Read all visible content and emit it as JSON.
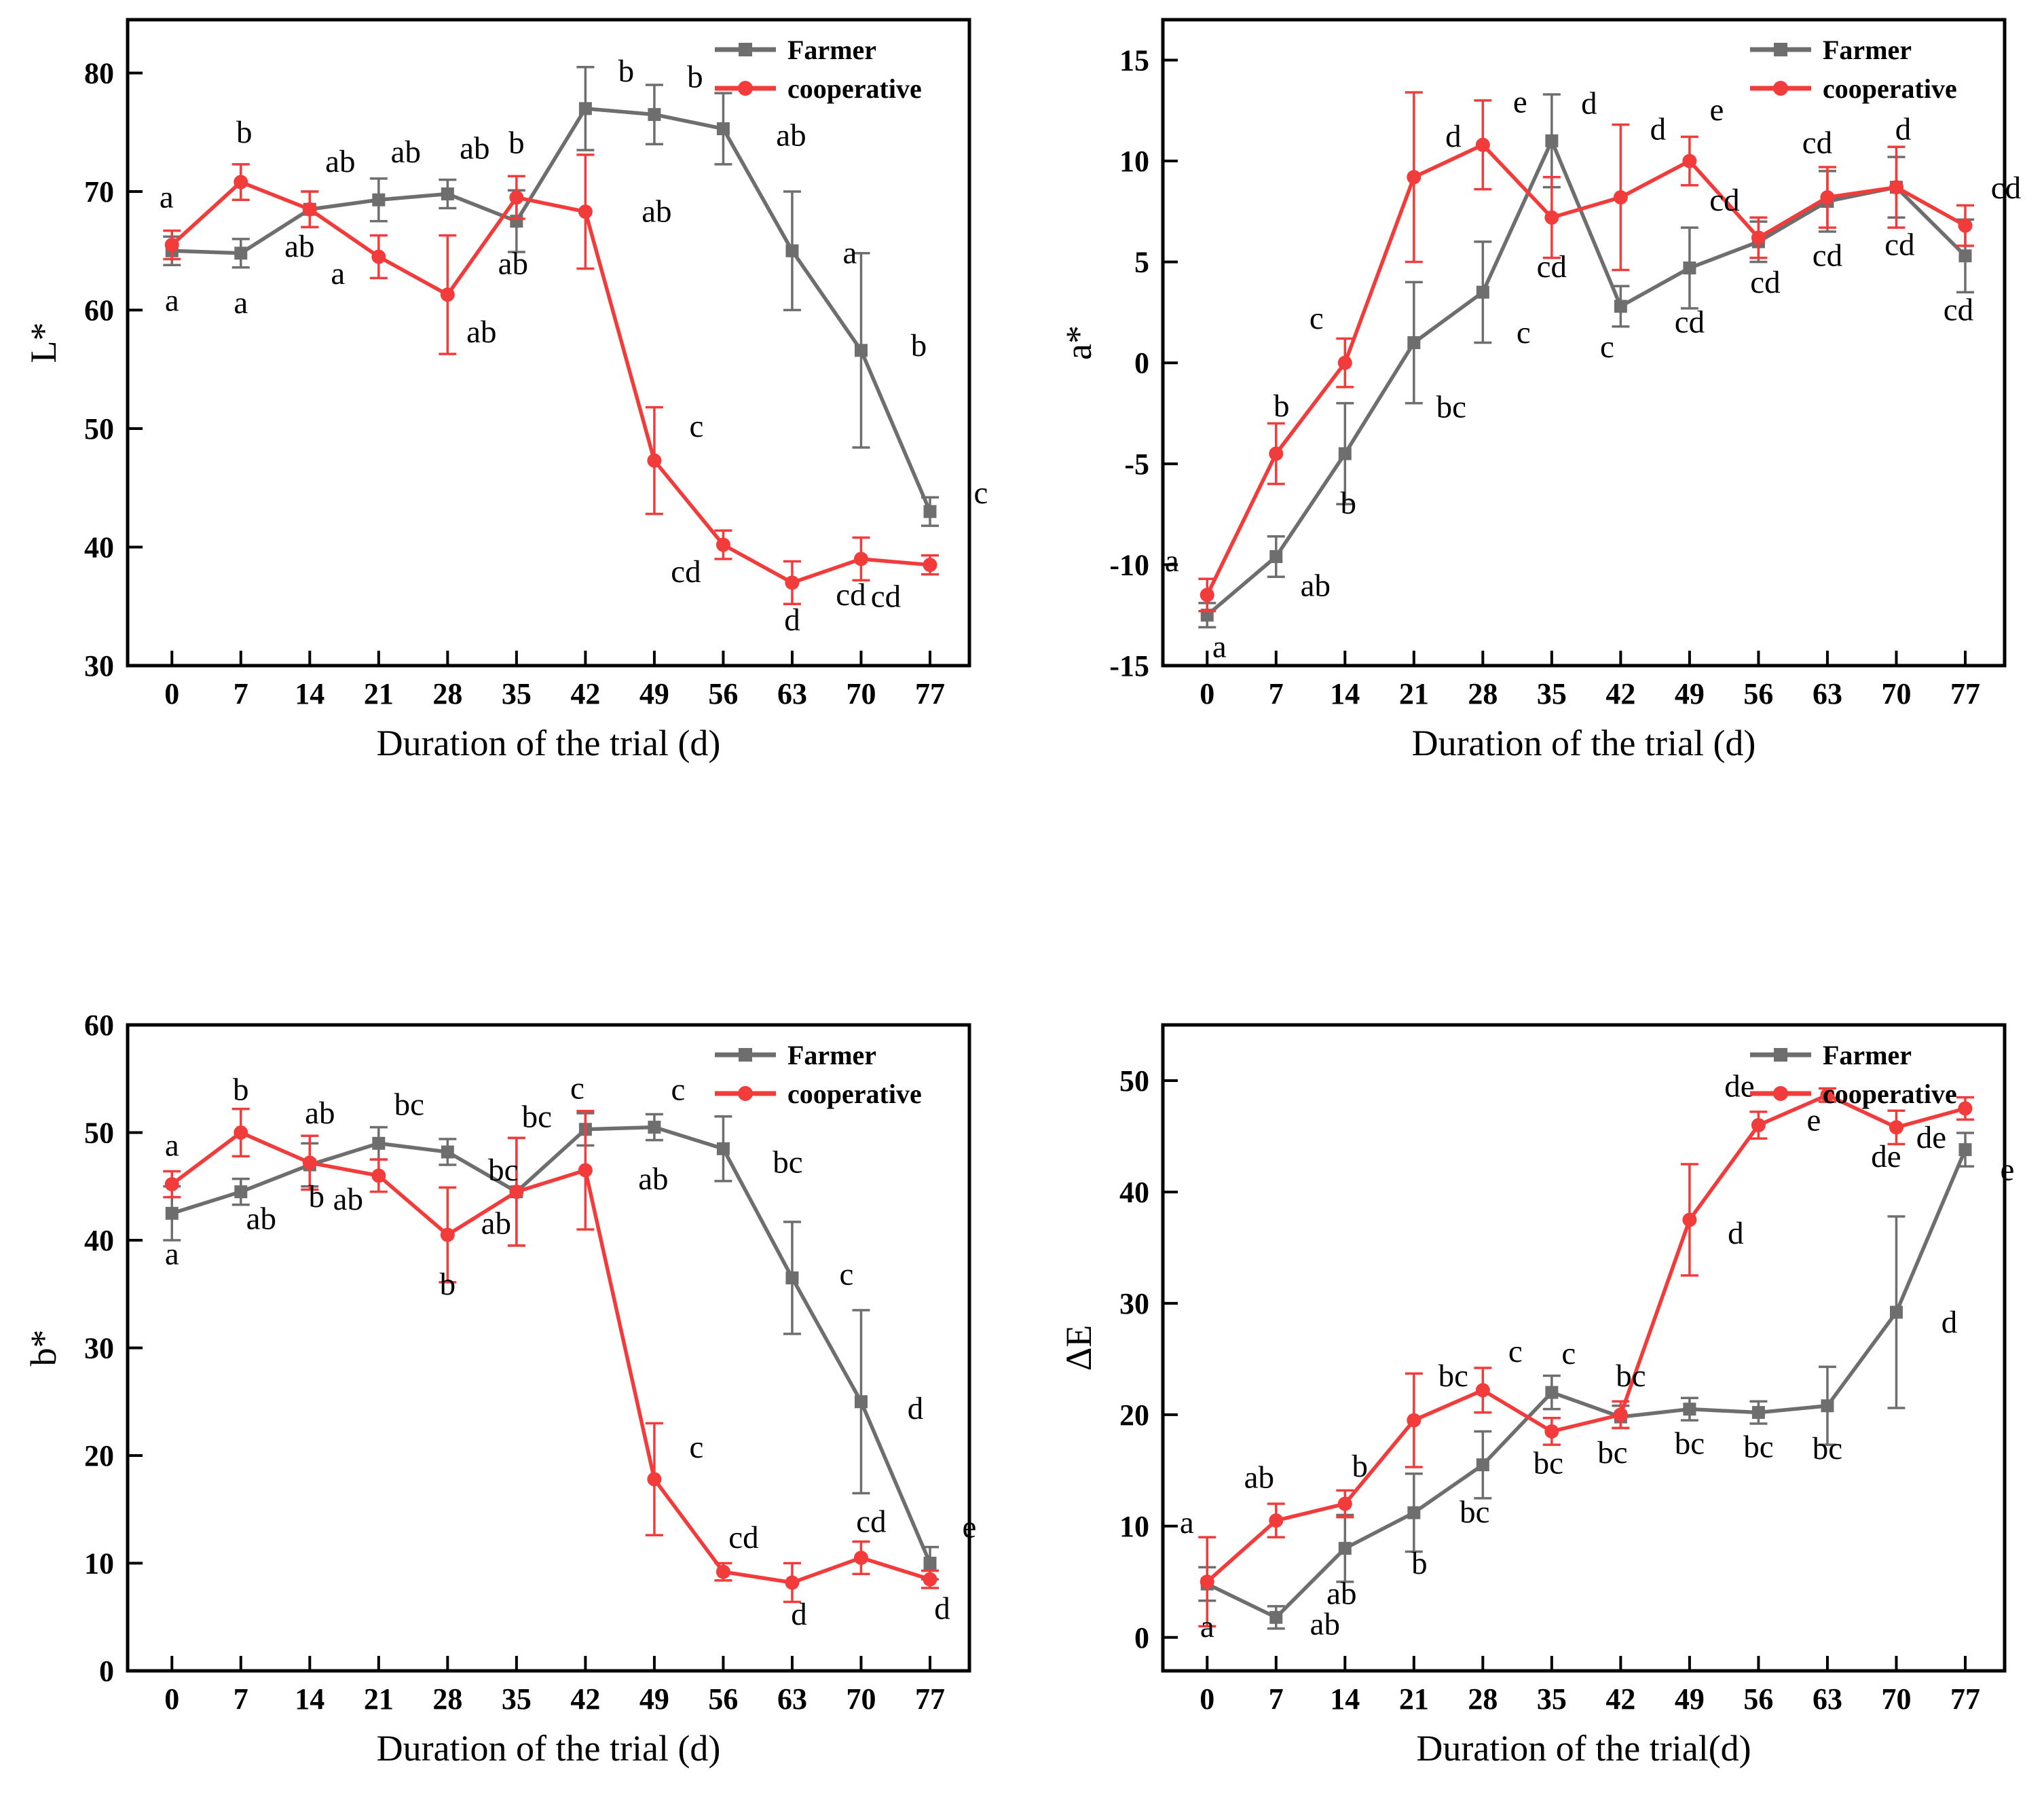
{
  "accent_colors": {
    "farmer": "#6e6e6e",
    "cooperative": "#f23b3b",
    "axis": "#000000"
  },
  "legend": {
    "farmer_label": "Farmer",
    "cooperative_label": "cooperative"
  },
  "chart_data": [
    {
      "type": "line",
      "title": "",
      "ylabel": "L*",
      "xlabel": "Duration of the trial (d)",
      "x": [
        0,
        7,
        14,
        21,
        28,
        35,
        42,
        49,
        56,
        63,
        70,
        77
      ],
      "xlim": [
        -4.5,
        81
      ],
      "ylim": [
        30,
        84.5
      ],
      "yticks": [
        30,
        40,
        50,
        60,
        70,
        80
      ],
      "legend_position": "top-right",
      "grid": false,
      "series": [
        {
          "name": "Farmer",
          "color": "#6e6e6e",
          "marker": "square",
          "label_color": "#000000",
          "values": [
            65.0,
            64.8,
            68.5,
            69.3,
            69.8,
            67.5,
            77.0,
            76.5,
            75.3,
            65.0,
            56.6,
            43.0
          ],
          "errors": [
            1.2,
            1.2,
            1.5,
            1.8,
            1.2,
            2.6,
            3.5,
            2.5,
            3.0,
            5.0,
            8.2,
            1.2
          ],
          "labels": [
            "a",
            "a",
            "ab",
            "ab",
            "ab",
            "ab",
            "b",
            "b",
            "ab",
            "a",
            "b",
            "c"
          ],
          "label_offsets": [
            [
              0,
              88
            ],
            [
              0,
              88
            ],
            [
              45,
              -55
            ],
            [
              40,
              -55
            ],
            [
              40,
              -52
            ],
            [
              -5,
              78
            ],
            [
              60,
              -40
            ],
            [
              60,
              -40
            ],
            [
              100,
              25
            ],
            [
              85,
              18
            ],
            [
              85,
              8
            ],
            [
              75,
              -12
            ]
          ]
        },
        {
          "name": "cooperative",
          "color": "#f23b3b",
          "marker": "circle",
          "label_color": "#f23b3b",
          "values": [
            65.5,
            70.8,
            68.5,
            64.5,
            61.3,
            69.5,
            68.3,
            47.3,
            40.2,
            37.0,
            39.0,
            38.5
          ],
          "errors": [
            1.2,
            1.5,
            1.5,
            1.8,
            5.0,
            1.8,
            4.8,
            4.5,
            1.2,
            1.8,
            1.8,
            0.8
          ],
          "labels": [
            "a",
            "b",
            "ab",
            "a",
            "ab",
            "b",
            "ab",
            "c",
            "cd",
            "d",
            "cd",
            "cd"
          ],
          "label_offsets": [
            [
              -8,
              -55
            ],
            [
              5,
              -58
            ],
            [
              -15,
              70
            ],
            [
              -60,
              40
            ],
            [
              50,
              70
            ],
            [
              0,
              -65
            ],
            [
              105,
              15
            ],
            [
              62,
              -35
            ],
            [
              -55,
              55
            ],
            [
              0,
              70
            ],
            [
              -15,
              68
            ],
            [
              -65,
              62
            ]
          ]
        }
      ]
    },
    {
      "type": "line",
      "title": "",
      "ylabel": "a*",
      "xlabel": "Duration of the trial (d)",
      "x": [
        0,
        7,
        14,
        21,
        28,
        35,
        42,
        49,
        56,
        63,
        70,
        77
      ],
      "xlim": [
        -4.5,
        81
      ],
      "ylim": [
        -15,
        17
      ],
      "yticks": [
        -15,
        -10,
        -5,
        0,
        5,
        10,
        15
      ],
      "legend_position": "top-right",
      "grid": false,
      "series": [
        {
          "name": "Farmer",
          "color": "#6e6e6e",
          "marker": "square",
          "label_color": "#000000",
          "values": [
            -12.5,
            -9.6,
            -4.5,
            1.0,
            3.5,
            11.0,
            2.8,
            4.7,
            6.0,
            8.0,
            8.7,
            5.3
          ],
          "errors": [
            0.6,
            1.0,
            2.5,
            3.0,
            2.5,
            2.3,
            1.0,
            2.0,
            1.0,
            1.5,
            1.5,
            1.8
          ],
          "labels": [
            "a",
            "ab",
            "b",
            "bc",
            "c",
            "d",
            "c",
            "cd",
            "cd",
            "cd",
            "cd",
            "cd"
          ],
          "label_offsets": [
            [
              18,
              62
            ],
            [
              58,
              58
            ],
            [
              5,
              88
            ],
            [
              55,
              110
            ],
            [
              60,
              75
            ],
            [
              55,
              -40
            ],
            [
              -20,
              75
            ],
            [
              0,
              95
            ],
            [
              10,
              75
            ],
            [
              0,
              95
            ],
            [
              5,
              100
            ],
            [
              -10,
              95
            ]
          ]
        },
        {
          "name": "cooperative",
          "color": "#f23b3b",
          "marker": "circle",
          "label_color": "#f23b3b",
          "values": [
            -11.5,
            -4.5,
            0.0,
            9.2,
            10.8,
            7.2,
            8.2,
            10.0,
            6.2,
            8.2,
            8.7,
            6.8
          ],
          "errors": [
            0.8,
            1.5,
            1.2,
            4.2,
            2.2,
            2.0,
            3.6,
            1.2,
            1.0,
            1.5,
            2.0,
            1.0
          ],
          "labels": [
            "a",
            "b",
            "c",
            "d",
            "e",
            "cd",
            "d",
            "e",
            "cd",
            "cd",
            "d",
            "cd"
          ],
          "label_offsets": [
            [
              -52,
              -35
            ],
            [
              8,
              -55
            ],
            [
              -42,
              -50
            ],
            [
              58,
              -45
            ],
            [
              55,
              -48
            ],
            [
              0,
              88
            ],
            [
              55,
              -85
            ],
            [
              40,
              -60
            ],
            [
              -50,
              -40
            ],
            [
              -15,
              -65
            ],
            [
              10,
              -70
            ],
            [
              60,
              -40
            ]
          ]
        }
      ]
    },
    {
      "type": "line",
      "title": "",
      "ylabel": "b*",
      "xlabel": "Duration of the trial (d)",
      "x": [
        0,
        7,
        14,
        21,
        28,
        35,
        42,
        49,
        56,
        63,
        70,
        77
      ],
      "xlim": [
        -4.5,
        81
      ],
      "ylim": [
        0,
        60
      ],
      "yticks": [
        0,
        10,
        20,
        30,
        40,
        50,
        60
      ],
      "legend_position": "top-right",
      "grid": false,
      "series": [
        {
          "name": "Farmer",
          "color": "#6e6e6e",
          "marker": "square",
          "label_color": "#000000",
          "values": [
            42.5,
            44.5,
            47.0,
            49.0,
            48.2,
            44.5,
            50.3,
            50.5,
            48.5,
            36.5,
            25.0,
            10.0
          ],
          "errors": [
            2.5,
            1.2,
            2.0,
            1.5,
            1.2,
            5.0,
            1.5,
            1.2,
            3.0,
            5.2,
            8.5,
            1.5
          ],
          "labels": [
            "a",
            "ab",
            "b",
            "bc",
            "bc",
            "bc",
            "c",
            "c",
            "bc",
            "c",
            "d",
            "e"
          ],
          "label_offsets": [
            [
              0,
              75
            ],
            [
              30,
              55
            ],
            [
              10,
              62
            ],
            [
              45,
              -42
            ],
            [
              82,
              42
            ],
            [
              30,
              -95
            ],
            [
              -12,
              -45
            ],
            [
              35,
              -40
            ],
            [
              95,
              35
            ],
            [
              80,
              10
            ],
            [
              80,
              25
            ],
            [
              58,
              -38
            ]
          ]
        },
        {
          "name": "cooperative",
          "color": "#f23b3b",
          "marker": "circle",
          "label_color": "#f23b3b",
          "values": [
            45.2,
            50.0,
            47.2,
            46.0,
            40.5,
            44.5,
            46.5,
            17.8,
            9.2,
            8.2,
            10.5,
            8.5
          ],
          "errors": [
            1.2,
            2.2,
            2.5,
            1.5,
            4.4,
            5.0,
            5.5,
            5.2,
            0.8,
            1.8,
            1.5,
            0.8
          ],
          "labels": [
            "a",
            "b",
            "ab",
            "ab",
            "b",
            "ab",
            "ab",
            "c",
            "cd",
            "d",
            "cd",
            "d"
          ],
          "label_offsets": [
            [
              0,
              -42
            ],
            [
              0,
              -48
            ],
            [
              15,
              -58
            ],
            [
              -45,
              50
            ],
            [
              0,
              88
            ],
            [
              -30,
              62
            ],
            [
              100,
              28
            ],
            [
              62,
              -32
            ],
            [
              30,
              -35
            ],
            [
              10,
              62
            ],
            [
              15,
              -38
            ],
            [
              18,
              58
            ]
          ]
        }
      ]
    },
    {
      "type": "line",
      "title": "",
      "ylabel": "ΔE",
      "xlabel": "Duration of the trial(d)",
      "x": [
        0,
        7,
        14,
        21,
        28,
        35,
        42,
        49,
        56,
        63,
        70,
        77
      ],
      "xlim": [
        -4.5,
        81
      ],
      "ylim": [
        -3,
        55
      ],
      "yticks": [
        0,
        10,
        20,
        30,
        40,
        50
      ],
      "legend_position": "top-right",
      "grid": false,
      "series": [
        {
          "name": "Farmer",
          "color": "#6e6e6e",
          "marker": "square",
          "label_color": "#000000",
          "values": [
            4.8,
            1.8,
            8.0,
            11.2,
            15.5,
            22.0,
            19.8,
            20.5,
            20.2,
            20.8,
            29.2,
            43.8
          ],
          "errors": [
            1.5,
            1.0,
            3.0,
            3.5,
            3.0,
            1.5,
            1.0,
            1.0,
            1.0,
            3.5,
            8.6,
            1.5
          ],
          "labels": [
            "a",
            "ab",
            "ab",
            "b",
            "bc",
            "c",
            "bc",
            "bc",
            "bc",
            "bc",
            "d",
            "e"
          ],
          "label_offsets": [
            [
              0,
              78
            ],
            [
              72,
              25
            ],
            [
              -5,
              82
            ],
            [
              8,
              90
            ],
            [
              -12,
              85
            ],
            [
              25,
              -42
            ],
            [
              -12,
              68
            ],
            [
              0,
              66
            ],
            [
              0,
              66
            ],
            [
              0,
              78
            ],
            [
              78,
              30
            ],
            [
              62,
              45
            ]
          ]
        },
        {
          "name": "cooperative",
          "color": "#f23b3b",
          "marker": "circle",
          "label_color": "#f23b3b",
          "values": [
            5.0,
            10.5,
            12.0,
            19.5,
            22.2,
            18.5,
            20.0,
            37.5,
            46.0,
            48.7,
            45.8,
            47.5
          ],
          "errors": [
            4.0,
            1.5,
            1.2,
            4.2,
            2.0,
            1.2,
            1.2,
            5.0,
            1.2,
            0.6,
            1.5,
            1.0
          ],
          "labels": [
            "a",
            "ab",
            "b",
            "bc",
            "c",
            "bc",
            "bc",
            "d",
            "de",
            "e",
            "de",
            "de"
          ],
          "label_offsets": [
            [
              -30,
              -72
            ],
            [
              -25,
              -48
            ],
            [
              22,
              -40
            ],
            [
              58,
              -50
            ],
            [
              48,
              -42
            ],
            [
              -5,
              62
            ],
            [
              15,
              -42
            ],
            [
              68,
              35
            ],
            [
              -28,
              -42
            ],
            [
              -20,
              52
            ],
            [
              -15,
              58
            ],
            [
              -50,
              58
            ]
          ]
        }
      ]
    }
  ]
}
